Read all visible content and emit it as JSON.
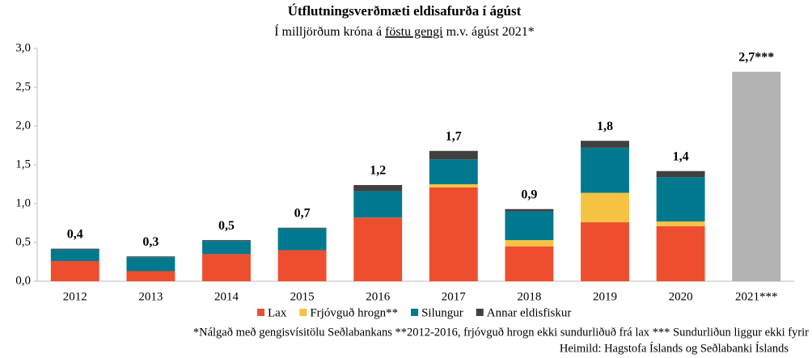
{
  "chart_data": {
    "type": "stacked_bar",
    "title": "Útflutningsverðmæti eldisafurða í ágúst",
    "subtitle_parts": [
      "Í milljörðum króna á ",
      "föstu gengi",
      " m.v. ágúst 2021*"
    ],
    "categories": [
      "2012",
      "2013",
      "2014",
      "2015",
      "2016",
      "2017",
      "2018",
      "2019",
      "2020",
      "2021***"
    ],
    "series": [
      {
        "name": "Lax",
        "color": "#ee4e30",
        "values": [
          0.26,
          0.13,
          0.35,
          0.4,
          0.82,
          1.21,
          0.45,
          0.76,
          0.71,
          null
        ]
      },
      {
        "name": "Frjóvguð hrogn**",
        "color": "#f6c342",
        "values": [
          0,
          0,
          0,
          0,
          0,
          0.04,
          0.08,
          0.38,
          0.06,
          null
        ]
      },
      {
        "name": "Silungur",
        "color": "#00798f",
        "values": [
          0.15,
          0.18,
          0.17,
          0.28,
          0.34,
          0.32,
          0.37,
          0.58,
          0.57,
          null
        ]
      },
      {
        "name": "Annar eldisfiskur",
        "color": "#404040",
        "values": [
          0.01,
          0.01,
          0.01,
          0.01,
          0.08,
          0.11,
          0.03,
          0.09,
          0.08,
          null
        ]
      },
      {
        "color": "#b3b3b3",
        "values": [
          null,
          null,
          null,
          null,
          null,
          null,
          null,
          null,
          null,
          2.7
        ]
      }
    ],
    "totals": {
      "values": [
        0.4,
        0.3,
        0.5,
        0.7,
        1.2,
        1.7,
        0.9,
        1.8,
        1.4,
        2.7
      ],
      "value_labels": [
        "0,4",
        "0,3",
        "0,5",
        "0,7",
        "1,2",
        "1,7",
        "0,9",
        "1,8",
        "1,4",
        "2,7***"
      ]
    },
    "ylim": [
      0,
      3
    ],
    "yticks": [
      {
        "value": 0,
        "label": "0,0"
      },
      {
        "value": 0.5,
        "label": "0,5"
      },
      {
        "value": 1,
        "label": "1,0"
      },
      {
        "value": 1.5,
        "label": "1,5"
      },
      {
        "value": 2,
        "label": "2,0"
      },
      {
        "value": 2.5,
        "label": "2,5"
      },
      {
        "value": 3,
        "label": "3,0"
      }
    ],
    "grid": false,
    "footnote": "*Nálgað með gengisvísitölu Seðlabankans **2012-2016, frjóvguð hrogn ekki sundurliðuð frá lax *** Sundurliðun liggur ekki fyrir",
    "source": "Heimild:  Hagstofa Íslands og Seðlabanki Íslands"
  }
}
